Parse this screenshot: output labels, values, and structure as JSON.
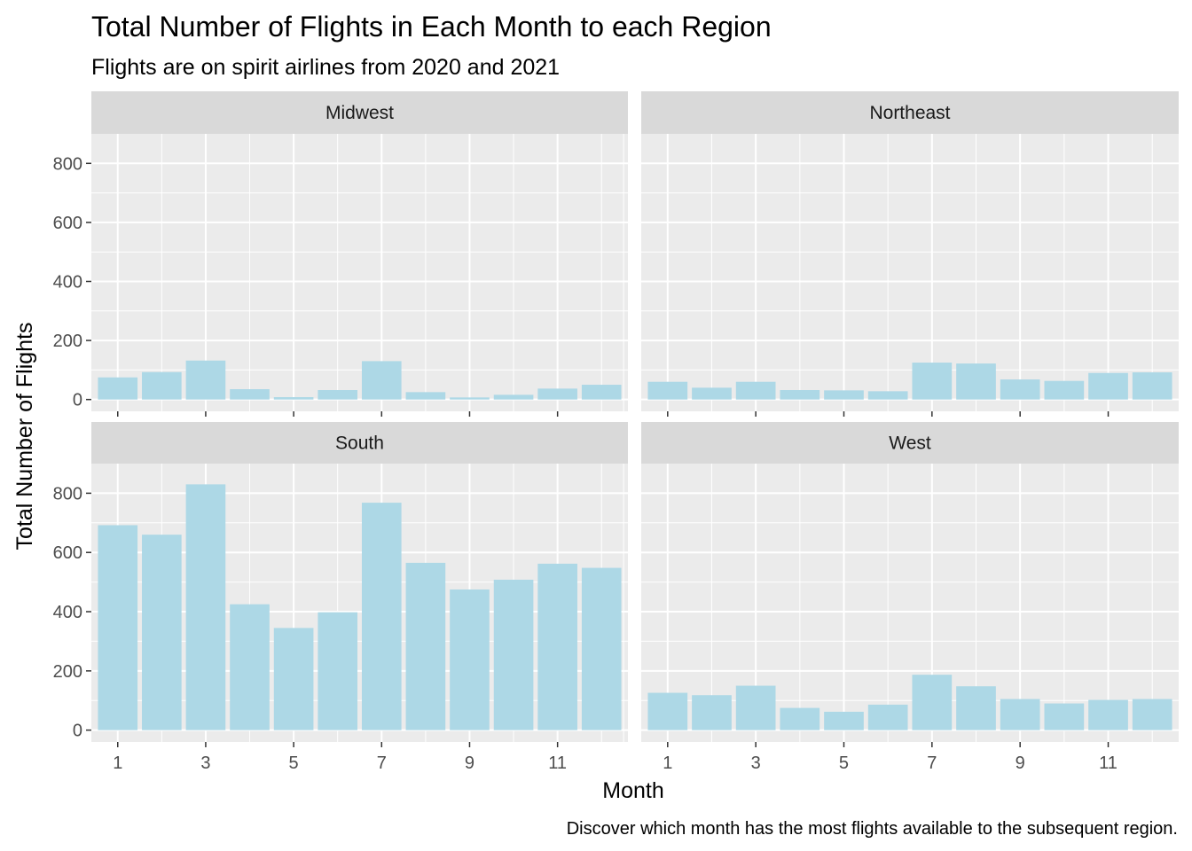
{
  "chart_data": {
    "type": "bar",
    "title": "Total Number of Flights in Each Month to each Region",
    "subtitle": "Flights are on spirit airlines from 2020 and 2021",
    "caption": "Discover which month has the most flights available to the subsequent region.",
    "xlabel": "Month",
    "ylabel": "Total Number of Flights",
    "x": [
      1,
      2,
      3,
      4,
      5,
      6,
      7,
      8,
      9,
      10,
      11,
      12
    ],
    "x_ticks": [
      1,
      3,
      5,
      7,
      9,
      11
    ],
    "y_ticks": [
      0,
      200,
      400,
      600,
      800
    ],
    "ylim": [
      -40,
      900
    ],
    "grid": true,
    "bar_color": "#ADD8E6",
    "panel_background": "#EBEBEB",
    "strip_background": "#D9D9D9",
    "facets": [
      {
        "name": "Midwest",
        "values": [
          75,
          93,
          132,
          35,
          8,
          32,
          130,
          25,
          7,
          16,
          37,
          50
        ]
      },
      {
        "name": "Northeast",
        "values": [
          60,
          40,
          60,
          32,
          31,
          28,
          125,
          122,
          68,
          63,
          90,
          92
        ]
      },
      {
        "name": "South",
        "values": [
          692,
          660,
          830,
          425,
          345,
          398,
          768,
          565,
          475,
          508,
          562,
          548
        ]
      },
      {
        "name": "West",
        "values": [
          126,
          118,
          150,
          75,
          62,
          86,
          187,
          148,
          105,
          90,
          102,
          105
        ]
      }
    ]
  }
}
